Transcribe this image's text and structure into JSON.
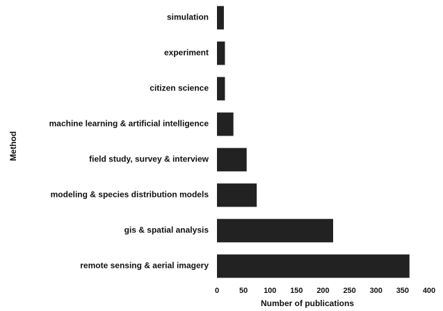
{
  "chart_data": {
    "type": "barh",
    "xlabel": "Number of publications",
    "ylabel": "Method",
    "categories": [
      "simulation",
      "experiment",
      "citizen science",
      "machine learning & artificial intelligence",
      "field study, survey & interview",
      "modeling & species distribution models",
      "gis & spatial analysis",
      "remote sensing & aerial imagery"
    ],
    "values": [
      13,
      15,
      15,
      31,
      56,
      75,
      219,
      363
    ],
    "color": "#222222",
    "xlim": [
      0,
      400
    ],
    "xticks": [
      0,
      50,
      100,
      150,
      200,
      250,
      300,
      350,
      400
    ],
    "grid": false
  }
}
